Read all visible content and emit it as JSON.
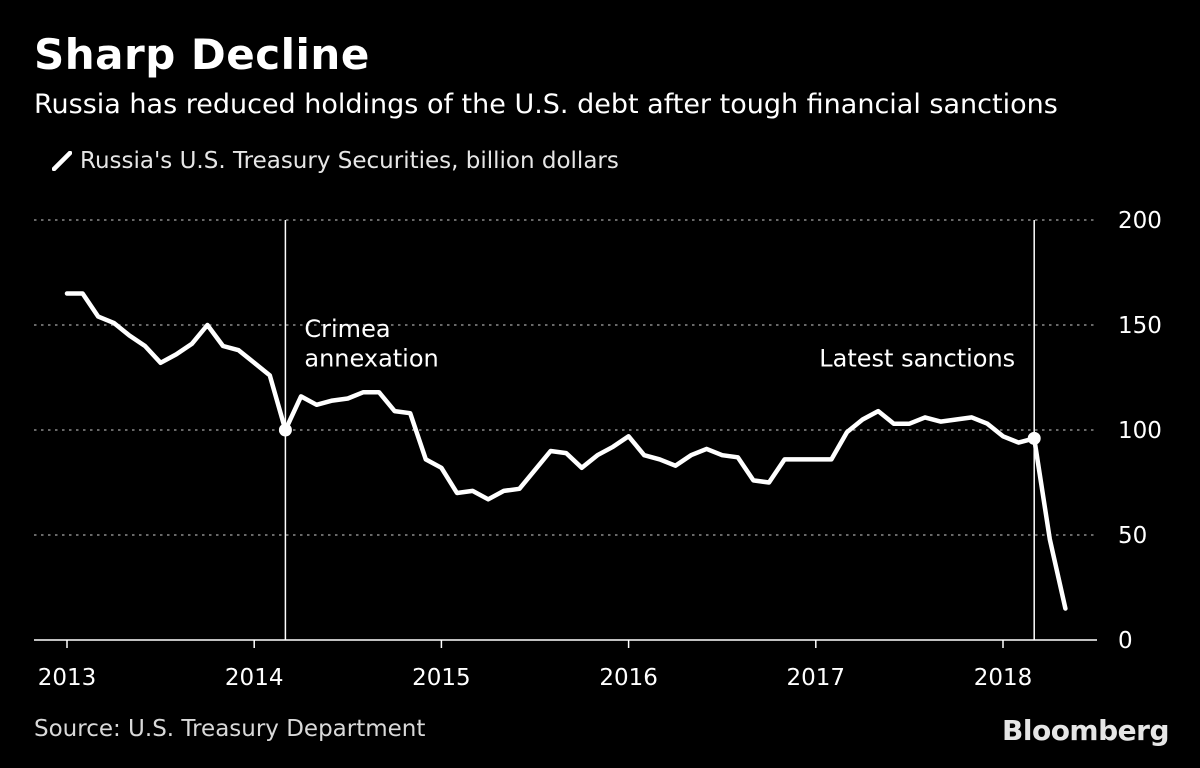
{
  "header": {
    "title": "Sharp Decline",
    "subtitle": "Russia has reduced holdings of the U.S. debt after tough financial sanctions"
  },
  "footer": {
    "source": "Source: U.S. Treasury Department",
    "brand": "Bloomberg"
  },
  "colors": {
    "background": "#000000",
    "line": "#ffffff",
    "grid": "#8a8a8a",
    "text": "#ffffff"
  },
  "chart_data": {
    "type": "line",
    "title": "Sharp Decline",
    "subtitle": "Russia has reduced holdings of the U.S. debt after tough financial sanctions",
    "xlabel": "",
    "ylabel": "",
    "xlim": [
      "2013-01",
      "2018-07"
    ],
    "ylim": [
      0,
      200
    ],
    "yticks": [
      0,
      50,
      100,
      150,
      200
    ],
    "xticks": [
      "2013",
      "2014",
      "2015",
      "2016",
      "2017",
      "2018"
    ],
    "grid": true,
    "legend": "top-left",
    "y_axis_position": "right",
    "series": [
      {
        "name": "Russia's U.S. Treasury Securities, billion dollars",
        "color": "#ffffff",
        "x": [
          "2013-01",
          "2013-02",
          "2013-03",
          "2013-04",
          "2013-05",
          "2013-06",
          "2013-07",
          "2013-08",
          "2013-09",
          "2013-10",
          "2013-11",
          "2013-12",
          "2014-01",
          "2014-02",
          "2014-03",
          "2014-04",
          "2014-05",
          "2014-06",
          "2014-07",
          "2014-08",
          "2014-09",
          "2014-10",
          "2014-11",
          "2014-12",
          "2015-01",
          "2015-02",
          "2015-03",
          "2015-04",
          "2015-05",
          "2015-06",
          "2015-07",
          "2015-08",
          "2015-09",
          "2015-10",
          "2015-11",
          "2015-12",
          "2016-01",
          "2016-02",
          "2016-03",
          "2016-04",
          "2016-05",
          "2016-06",
          "2016-07",
          "2016-08",
          "2016-09",
          "2016-10",
          "2016-11",
          "2016-12",
          "2017-01",
          "2017-02",
          "2017-03",
          "2017-04",
          "2017-05",
          "2017-06",
          "2017-07",
          "2017-08",
          "2017-09",
          "2017-10",
          "2017-11",
          "2017-12",
          "2018-01",
          "2018-02",
          "2018-03",
          "2018-04",
          "2018-05"
        ],
        "values": [
          165,
          165,
          154,
          151,
          145,
          140,
          132,
          136,
          141,
          150,
          140,
          138,
          132,
          126,
          100,
          116,
          112,
          114,
          115,
          118,
          118,
          109,
          108,
          86,
          82,
          70,
          71,
          67,
          71,
          72,
          81,
          90,
          89,
          82,
          88,
          92,
          97,
          88,
          86,
          83,
          88,
          91,
          88,
          87,
          76,
          75,
          86,
          86,
          86,
          86,
          99,
          105,
          109,
          103,
          103,
          106,
          104,
          105,
          106,
          103,
          97,
          94,
          96,
          48,
          15
        ]
      }
    ],
    "highlight_points": [
      {
        "x": "2014-03",
        "y": 100
      },
      {
        "x": "2018-03",
        "y": 96
      }
    ],
    "annotations": [
      {
        "x": "2014-03",
        "lines": [
          "Crimea",
          "annexation"
        ],
        "placement": "right",
        "text_y": [
          148,
          134
        ]
      },
      {
        "x": "2018-03",
        "lines": [
          "Latest sanctions"
        ],
        "placement": "left",
        "text_y": [
          134
        ]
      }
    ]
  }
}
